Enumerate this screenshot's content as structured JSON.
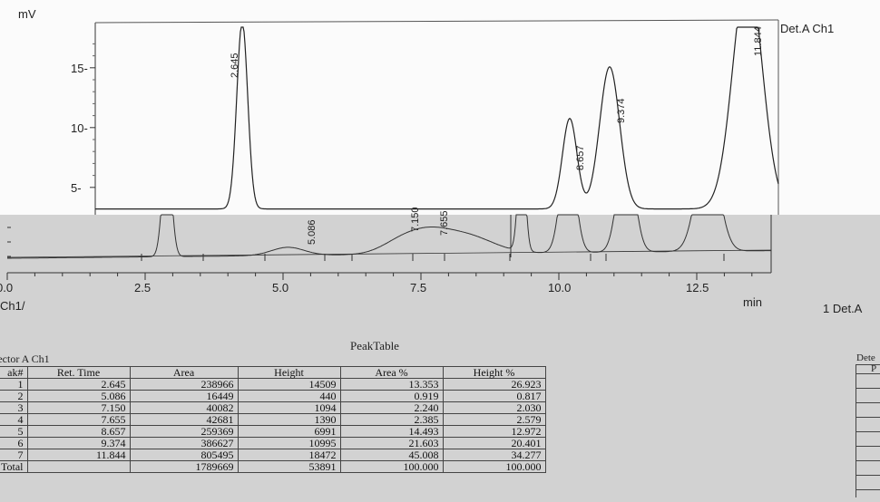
{
  "chart_data": {
    "type": "line",
    "title": "",
    "ylabel": "mV",
    "xlabel": "min",
    "detector_label": "Det.A Ch1",
    "ylim": [
      0,
      19
    ],
    "xlim": [
      0,
      14
    ],
    "y_ticks": [
      "15-",
      "10-",
      "5-"
    ],
    "x_ticks": [
      {
        "value": 0,
        "label": "0.0"
      },
      {
        "value": 2.5,
        "label": "2.5"
      },
      {
        "value": 5,
        "label": "5.0"
      },
      {
        "value": 7.5,
        "label": "7.5"
      },
      {
        "value": 10,
        "label": "10.0"
      },
      {
        "value": 12.5,
        "label": "12.5"
      }
    ],
    "peaks": [
      {
        "rt": 2.645,
        "label": "2.645",
        "height_mV": 14.5
      },
      {
        "rt": 5.086,
        "label": "5.086",
        "height_mV": 0.44
      },
      {
        "rt": 7.15,
        "label": "7.150",
        "height_mV": 1.09
      },
      {
        "rt": 7.655,
        "label": "7.655",
        "height_mV": 1.39
      },
      {
        "rt": 8.657,
        "label": "8.657",
        "height_mV": 7.0
      },
      {
        "rt": 9.374,
        "label": "9.374",
        "height_mV": 11.0
      },
      {
        "rt": 11.844,
        "label": "11.844",
        "height_mV": 18.5
      }
    ]
  },
  "overlay": {
    "ch_label": "Ch1/",
    "right_det_label": "1  Det.A",
    "peak_table_title": "PeakTable",
    "detector_title": "tector A Ch1",
    "right_fragment": "Dete",
    "right_fragment_col": "P"
  },
  "peak_table": {
    "headers": [
      "ak#",
      "Ret. Time",
      "Area",
      "Height",
      "Area %",
      "Height %"
    ],
    "rows": [
      [
        "1",
        "2.645",
        "238966",
        "14509",
        "13.353",
        "26.923"
      ],
      [
        "2",
        "5.086",
        "16449",
        "440",
        "0.919",
        "0.817"
      ],
      [
        "3",
        "7.150",
        "40082",
        "1094",
        "2.240",
        "2.030"
      ],
      [
        "4",
        "7.655",
        "42681",
        "1390",
        "2.385",
        "2.579"
      ],
      [
        "5",
        "8.657",
        "259369",
        "6991",
        "14.493",
        "12.972"
      ],
      [
        "6",
        "9.374",
        "386627",
        "10995",
        "21.603",
        "20.401"
      ],
      [
        "7",
        "11.844",
        "805495",
        "18472",
        "45.008",
        "34.277"
      ]
    ],
    "total": [
      "Total",
      "",
      "1789669",
      "53891",
      "100.000",
      "100.000"
    ]
  }
}
